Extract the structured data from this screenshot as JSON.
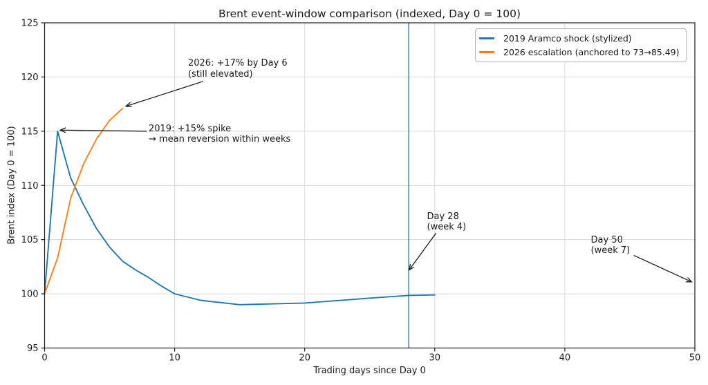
{
  "chart_data": {
    "type": "line",
    "title": "Brent event-window comparison (indexed, Day 0 = 100)",
    "xlabel": "Trading days since Day 0",
    "ylabel": "Brent index (Day 0 = 100)",
    "xlim": [
      0,
      50
    ],
    "ylim": [
      95,
      125
    ],
    "xticks": [
      0,
      10,
      20,
      30,
      40,
      50
    ],
    "yticks": [
      95,
      100,
      105,
      110,
      115,
      120,
      125
    ],
    "grid": true,
    "grid_color": "#d9d9d9",
    "spine_color": "#1a1a1a",
    "legend_position": "upper right",
    "series": [
      {
        "name": "2019 Aramco shock (stylized)",
        "color": "#1f77b4",
        "x": [
          0,
          1,
          2,
          3,
          4,
          5,
          6,
          7,
          8,
          9,
          10,
          12,
          15,
          20,
          25,
          28,
          30
        ],
        "y": [
          100,
          115,
          110.7,
          108.2,
          106.0,
          104.3,
          103.0,
          102.2,
          101.5,
          100.7,
          100.0,
          99.4,
          99.0,
          99.15,
          99.6,
          99.85,
          99.9
        ]
      },
      {
        "name": "2026 escalation (anchored to 73→85.49)",
        "color": "#ff7f0e",
        "x": [
          0,
          1,
          2,
          3,
          4,
          5,
          6
        ],
        "y": [
          100,
          103.3,
          108.8,
          112.0,
          114.3,
          116.0,
          117.1
        ]
      }
    ],
    "event_line": {
      "x": 28,
      "color": "#1f77b4",
      "opacity": 0.75
    },
    "annotations": [
      {
        "id": "2026-day6",
        "lines": [
          "2026: +17% by Day 6",
          "(still elevated)"
        ],
        "text_xy": [
          11.03,
          121.75
        ],
        "arrow_from": [
          12.2,
          119.6
        ],
        "arrow_to": [
          6.25,
          117.3
        ]
      },
      {
        "id": "2019-spike",
        "lines": [
          "2019: +15% spike",
          "→ mean reversion within weeks"
        ],
        "text_xy": [
          8.0,
          115.7
        ],
        "arrow_from": [
          7.85,
          115.0
        ],
        "arrow_to": [
          1.2,
          115.1
        ]
      },
      {
        "id": "day-28",
        "lines": [
          "Day 28",
          "(week 4)"
        ],
        "text_xy": [
          29.4,
          107.6
        ],
        "arrow_from": [
          30.1,
          105.6
        ],
        "arrow_to": [
          28.03,
          102.2
        ]
      },
      {
        "id": "day-50",
        "lines": [
          "Day 50",
          "(week 7)"
        ],
        "text_xy": [
          42.0,
          105.45
        ],
        "arrow_from": [
          45.3,
          103.55
        ],
        "arrow_to": [
          49.75,
          101.1
        ]
      }
    ]
  }
}
